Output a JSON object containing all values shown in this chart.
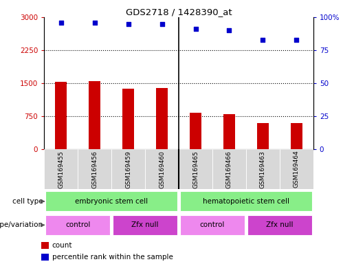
{
  "title": "GDS2718 / 1428390_at",
  "samples": [
    "GSM169455",
    "GSM169456",
    "GSM169459",
    "GSM169460",
    "GSM169465",
    "GSM169466",
    "GSM169463",
    "GSM169464"
  ],
  "counts": [
    1530,
    1540,
    1380,
    1390,
    830,
    800,
    590,
    590
  ],
  "percentile_ranks": [
    96,
    96,
    95,
    95,
    91,
    90,
    83,
    83
  ],
  "ylim_left": [
    0,
    3000
  ],
  "ylim_right": [
    0,
    100
  ],
  "yticks_left": [
    0,
    750,
    1500,
    2250,
    3000
  ],
  "yticks_right": [
    0,
    25,
    50,
    75,
    100
  ],
  "ytick_labels_left": [
    "0",
    "750",
    "1500",
    "2250",
    "3000"
  ],
  "ytick_labels_right": [
    "0",
    "25",
    "50",
    "75",
    "100%"
  ],
  "cell_type_labels": [
    "embryonic stem cell",
    "hematopoietic stem cell"
  ],
  "genotype_labels": [
    "control",
    "Zfx null",
    "control",
    "Zfx null"
  ],
  "bar_color": "#cc0000",
  "dot_color": "#0000cc",
  "cell_type_color": "#88ee88",
  "genotype_control_color": "#ee88ee",
  "genotype_zfx_color": "#cc44cc",
  "tick_label_color_left": "#cc0000",
  "tick_label_color_right": "#0000cc",
  "background_color": "#ffffff",
  "bar_width": 0.35,
  "label_area_bg": "#d8d8d8",
  "separator_color": "#888888"
}
